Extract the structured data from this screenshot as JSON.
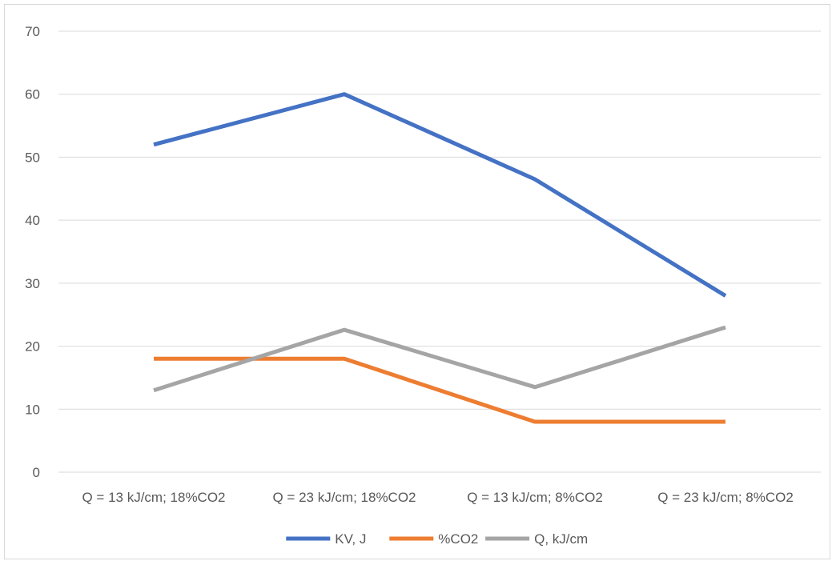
{
  "chart_data": {
    "type": "line",
    "title": "",
    "xlabel": "",
    "ylabel": "",
    "categories": [
      "Q = 13 kJ/cm; 18%CO2",
      "Q = 23 kJ/cm; 18%CO2",
      "Q = 13 kJ/cm; 8%CO2",
      "Q = 23 kJ/cm; 8%CO2"
    ],
    "ylim": [
      0,
      70
    ],
    "yticks": [
      0,
      10,
      20,
      30,
      40,
      50,
      60,
      70
    ],
    "grid": "horizontal",
    "legend_position": "bottom",
    "series": [
      {
        "name": "KV, J",
        "color": "#4472c4",
        "values": [
          52,
          60,
          46.5,
          28
        ]
      },
      {
        "name": "%CO2",
        "color": "#ed7d31",
        "values": [
          18,
          18,
          8,
          8
        ]
      },
      {
        "name": "Q, kJ/cm",
        "color": "#a5a5a5",
        "values": [
          13,
          22.6,
          13.5,
          23
        ]
      }
    ]
  }
}
